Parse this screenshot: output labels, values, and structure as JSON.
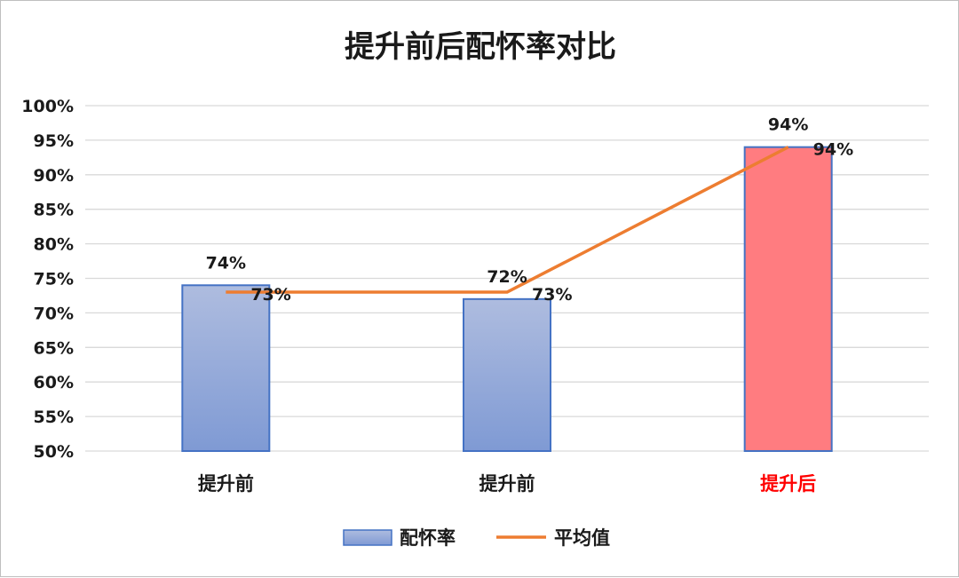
{
  "chart_data": {
    "type": "bar",
    "title": "提升前后配怀率对比",
    "categories": [
      "提升前",
      "提升前",
      "提升后"
    ],
    "category_colors": [
      "#1a1a1a",
      "#1a1a1a",
      "#ff0000"
    ],
    "series": [
      {
        "name": "配怀率",
        "kind": "bar",
        "values": [
          74,
          72,
          94
        ],
        "value_labels": [
          "74%",
          "72%",
          "94%"
        ],
        "colors": [
          "#8faadc",
          "#8faadc",
          "#ff7c80"
        ],
        "border_color": "#4472c4"
      },
      {
        "name": "平均值",
        "kind": "line",
        "values": [
          73,
          73,
          94
        ],
        "value_labels": [
          "73%",
          "73%",
          "94%"
        ],
        "color": "#ed7d31"
      }
    ],
    "yticks": [
      "50%",
      "55%",
      "60%",
      "65%",
      "70%",
      "75%",
      "80%",
      "85%",
      "90%",
      "95%",
      "100%"
    ],
    "ylim": [
      50,
      100
    ],
    "grid": true,
    "legend_position": "bottom"
  }
}
